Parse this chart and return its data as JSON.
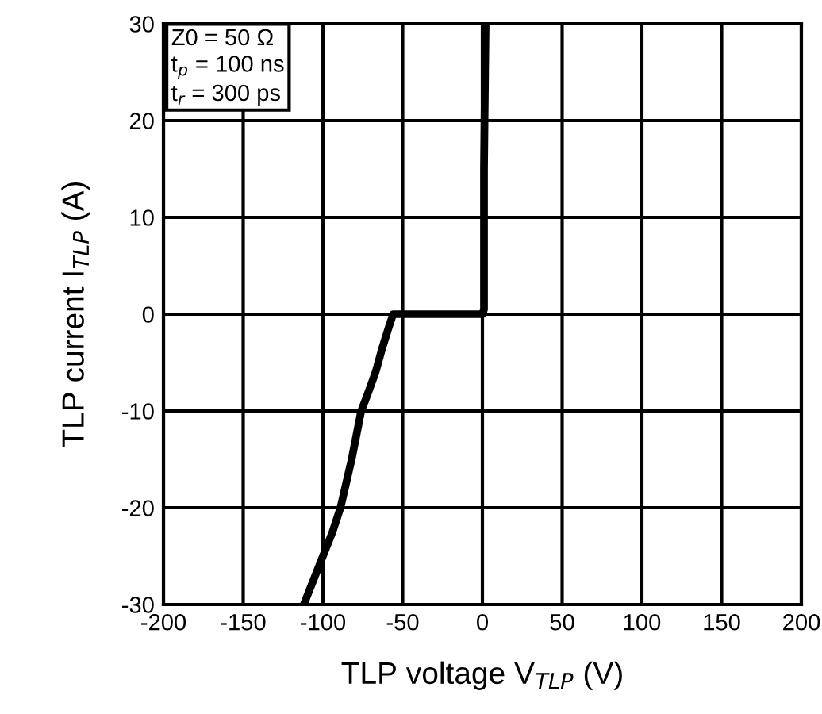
{
  "chart_data": {
    "type": "line",
    "xlabel": "TLP voltage V$_{TLP}$ (V)",
    "ylabel": "TLP current I$_{TLP}$ (A)",
    "series": [
      {
        "color": "#000000",
        "x": [
          -112,
          -106,
          -100,
          -94,
          -89,
          -82,
          -76,
          -72.5,
          -67,
          -63,
          -59,
          -56,
          -30,
          0,
          1,
          1,
          2
        ],
        "values": [
          -30,
          -27.5,
          -25,
          -22.5,
          -20,
          -15,
          -10,
          -8.5,
          -6,
          -3.6,
          -1.5,
          0,
          0,
          0,
          0.5,
          15,
          30
        ]
      }
    ],
    "xlim": [
      -200,
      200
    ],
    "xticks": [
      -200,
      -150,
      -100,
      -50,
      0,
      50,
      100,
      150,
      200
    ],
    "ylim": [
      -30,
      30
    ],
    "yticks": [
      -30,
      -20,
      -10,
      0,
      10,
      20,
      30
    ],
    "grid": true,
    "marker": "none",
    "line_style": "solid",
    "annotations": [
      "Z0 = 50 Ω\nt$_{p}$ = 100 ns\nt$_{r}$ = 300 ps"
    ]
  }
}
